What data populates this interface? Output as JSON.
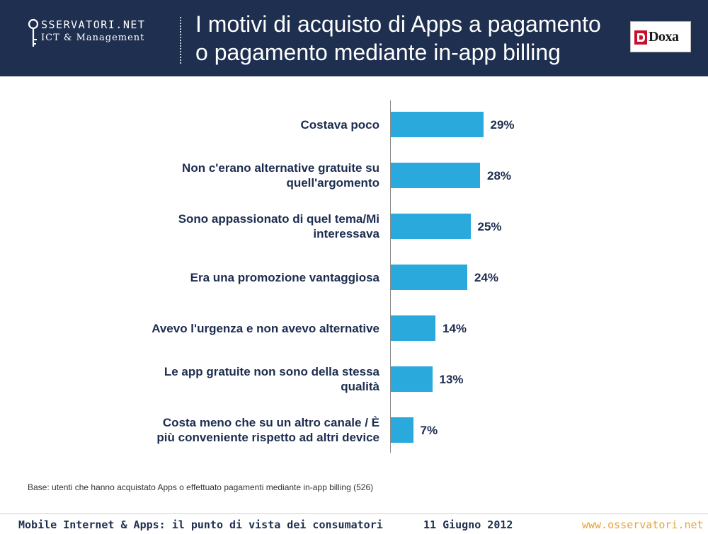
{
  "header": {
    "logo_line1": "SSERVATORI.NET",
    "logo_line2": "ICT & Management",
    "title_line1": "I motivi di acquisto di Apps a pagamento",
    "title_line2": "o pagamento mediante in-app billing",
    "doxa_label": "Doxa"
  },
  "colors": {
    "header_bg": "#1e2f4f",
    "bar": "#29a9dc",
    "label_text": "#1d2d50",
    "footer_accent": "#e8a23a"
  },
  "chart_data": {
    "type": "bar",
    "orientation": "horizontal",
    "title": "",
    "xlabel": "",
    "ylabel": "",
    "categories": [
      [
        "Costava poco"
      ],
      [
        "Non c'erano alternative gratuite su",
        "quell'argomento"
      ],
      [
        "Sono appassionato di quel tema/Mi",
        "interessava"
      ],
      [
        "Era una promozione vantaggiosa"
      ],
      [
        "Avevo l'urgenza e non avevo alternative"
      ],
      [
        "Le app gratuite non sono della stessa",
        "qualità"
      ],
      [
        "Costa meno che su un altro canale / È",
        "più conveniente rispetto ad altri device"
      ]
    ],
    "values": [
      29,
      28,
      25,
      24,
      14,
      13,
      7
    ],
    "value_labels": [
      "29%",
      "28%",
      "25%",
      "24%",
      "14%",
      "13%",
      "7%"
    ],
    "xlim": [
      0,
      100
    ],
    "grid": false,
    "legend": "none"
  },
  "note": "Base: utenti che hanno acquistato Apps o effettuato pagamenti mediante in-app billing (526)",
  "footer": {
    "left": "Mobile Internet & Apps: il punto di vista dei consumatori",
    "date": "11 Giugno 2012",
    "right": "www.osservatori.net"
  }
}
